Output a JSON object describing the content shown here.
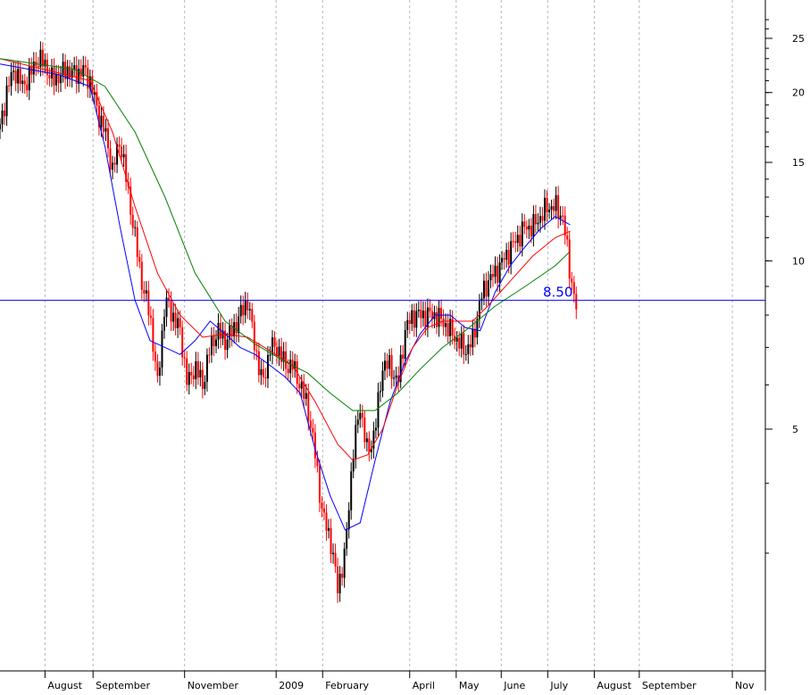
{
  "chart_data": {
    "type": "candlestick",
    "scale": "log",
    "ylim": [
      2.0,
      30.0
    ],
    "y_ticks": [
      "25",
      "20",
      "15",
      "10",
      "5"
    ],
    "y_tick_values": [
      25,
      20,
      15,
      10,
      5
    ],
    "x_month_labels": [
      "August",
      "September",
      "November",
      "2009",
      "February",
      "April",
      "May",
      "June",
      "July",
      "August",
      "September",
      "Nov"
    ],
    "x_month_days": [
      30,
      62,
      123,
      184,
      215,
      273,
      304,
      334,
      365,
      396,
      426,
      488
    ],
    "x_range_days": [
      0,
      510
    ],
    "grid": "vertical-dotted",
    "horizontal_level": {
      "value": 8.5,
      "label": "8.50",
      "color": "#0000ff"
    },
    "candle_colors": {
      "up": "#000000",
      "down": "#ff0000"
    },
    "close": [
      [
        0,
        17.2
      ],
      [
        5,
        20.5
      ],
      [
        10,
        22.0
      ],
      [
        15,
        20.5
      ],
      [
        20,
        21.5
      ],
      [
        25,
        23.0
      ],
      [
        30,
        22.5
      ],
      [
        35,
        21.0
      ],
      [
        40,
        21.5
      ],
      [
        45,
        22.0
      ],
      [
        50,
        21.5
      ],
      [
        55,
        22.0
      ],
      [
        60,
        21.0
      ],
      [
        65,
        18.5
      ],
      [
        70,
        17.0
      ],
      [
        75,
        14.5
      ],
      [
        80,
        16.5
      ],
      [
        85,
        13.5
      ],
      [
        90,
        11.0
      ],
      [
        95,
        9.0
      ],
      [
        100,
        8.0
      ],
      [
        105,
        6.0
      ],
      [
        110,
        8.5
      ],
      [
        115,
        8.0
      ],
      [
        120,
        7.5
      ],
      [
        125,
        6.0
      ],
      [
        130,
        6.5
      ],
      [
        135,
        6.0
      ],
      [
        140,
        7.0
      ],
      [
        145,
        7.5
      ],
      [
        150,
        7.2
      ],
      [
        155,
        7.5
      ],
      [
        160,
        8.0
      ],
      [
        165,
        8.5
      ],
      [
        170,
        7.0
      ],
      [
        175,
        6.0
      ],
      [
        180,
        7.0
      ],
      [
        185,
        7.0
      ],
      [
        190,
        6.5
      ],
      [
        195,
        6.5
      ],
      [
        200,
        6.0
      ],
      [
        205,
        5.5
      ],
      [
        210,
        4.5
      ],
      [
        215,
        3.5
      ],
      [
        220,
        3.2
      ],
      [
        225,
        2.6
      ],
      [
        230,
        3.0
      ],
      [
        235,
        4.5
      ],
      [
        240,
        5.5
      ],
      [
        245,
        4.5
      ],
      [
        250,
        5.0
      ],
      [
        255,
        6.5
      ],
      [
        260,
        6.5
      ],
      [
        265,
        6.0
      ],
      [
        270,
        7.5
      ],
      [
        275,
        8.0
      ],
      [
        280,
        8.0
      ],
      [
        285,
        8.0
      ],
      [
        290,
        8.0
      ],
      [
        295,
        7.8
      ],
      [
        300,
        7.5
      ],
      [
        305,
        7.2
      ],
      [
        310,
        6.9
      ],
      [
        315,
        7.2
      ],
      [
        320,
        8.5
      ],
      [
        325,
        9.2
      ],
      [
        330,
        9.5
      ],
      [
        335,
        10.0
      ],
      [
        340,
        10.5
      ],
      [
        345,
        11.0
      ],
      [
        350,
        11.5
      ],
      [
        355,
        11.5
      ],
      [
        360,
        12.0
      ],
      [
        365,
        12.5
      ],
      [
        370,
        12.5
      ],
      [
        375,
        12.0
      ],
      [
        380,
        9.5
      ],
      [
        384,
        8.2
      ]
    ],
    "series": [
      {
        "color": "#0000ff",
        "values": [
          [
            0,
            22.5
          ],
          [
            40,
            21.5
          ],
          [
            60,
            20.5
          ],
          [
            70,
            16.0
          ],
          [
            80,
            11.5
          ],
          [
            90,
            8.5
          ],
          [
            100,
            7.2
          ],
          [
            110,
            7.0
          ],
          [
            120,
            6.8
          ],
          [
            130,
            7.2
          ],
          [
            140,
            7.8
          ],
          [
            150,
            7.4
          ],
          [
            160,
            7.0
          ],
          [
            170,
            6.8
          ],
          [
            180,
            6.5
          ],
          [
            190,
            6.2
          ],
          [
            200,
            5.8
          ],
          [
            210,
            4.6
          ],
          [
            220,
            3.8
          ],
          [
            230,
            3.3
          ],
          [
            240,
            3.4
          ],
          [
            250,
            4.4
          ],
          [
            260,
            5.6
          ],
          [
            270,
            6.6
          ],
          [
            280,
            7.4
          ],
          [
            290,
            8.0
          ],
          [
            300,
            8.0
          ],
          [
            310,
            7.6
          ],
          [
            320,
            7.5
          ],
          [
            330,
            8.8
          ],
          [
            340,
            9.8
          ],
          [
            350,
            10.6
          ],
          [
            360,
            11.4
          ],
          [
            370,
            12.0
          ],
          [
            380,
            11.6
          ]
        ]
      },
      {
        "color": "#ff0000",
        "values": [
          [
            0,
            23.0
          ],
          [
            60,
            21.0
          ],
          [
            75,
            17.0
          ],
          [
            90,
            12.5
          ],
          [
            105,
            9.5
          ],
          [
            120,
            8.0
          ],
          [
            135,
            7.3
          ],
          [
            150,
            7.4
          ],
          [
            165,
            7.3
          ],
          [
            180,
            6.9
          ],
          [
            195,
            6.5
          ],
          [
            210,
            5.6
          ],
          [
            225,
            4.7
          ],
          [
            235,
            4.4
          ],
          [
            245,
            4.5
          ],
          [
            255,
            5.0
          ],
          [
            265,
            6.0
          ],
          [
            275,
            7.0
          ],
          [
            285,
            7.6
          ],
          [
            295,
            7.8
          ],
          [
            305,
            7.8
          ],
          [
            315,
            7.8
          ],
          [
            325,
            8.3
          ],
          [
            340,
            9.2
          ],
          [
            355,
            10.2
          ],
          [
            370,
            11.0
          ],
          [
            380,
            11.3
          ]
        ]
      },
      {
        "color": "#008000",
        "values": [
          [
            0,
            23.0
          ],
          [
            50,
            22.0
          ],
          [
            70,
            20.5
          ],
          [
            90,
            17.0
          ],
          [
            110,
            13.0
          ],
          [
            130,
            9.5
          ],
          [
            150,
            7.8
          ],
          [
            170,
            7.1
          ],
          [
            190,
            6.6
          ],
          [
            205,
            6.3
          ],
          [
            220,
            5.8
          ],
          [
            235,
            5.4
          ],
          [
            250,
            5.4
          ],
          [
            265,
            5.8
          ],
          [
            280,
            6.4
          ],
          [
            295,
            7.0
          ],
          [
            310,
            7.5
          ],
          [
            330,
            8.3
          ],
          [
            350,
            9.0
          ],
          [
            370,
            9.8
          ],
          [
            380,
            10.4
          ]
        ]
      }
    ]
  }
}
